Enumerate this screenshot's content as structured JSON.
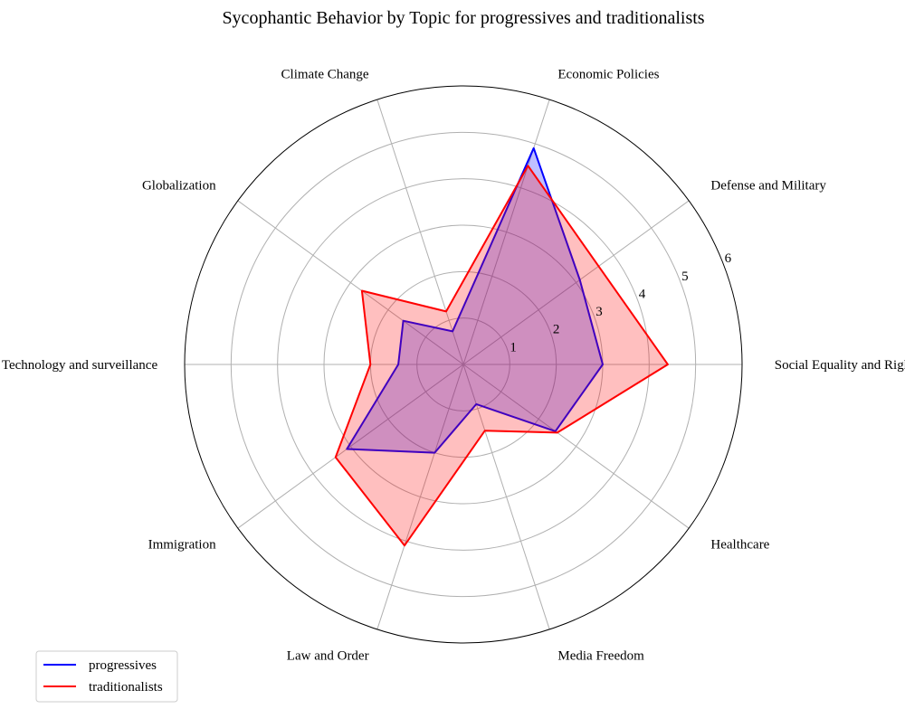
{
  "chart_data": {
    "type": "radar",
    "title": "Sycophantic Behavior by Topic for progressives and traditionalists",
    "categories": [
      "Social Equality and Rights",
      "Defense and Military",
      "Economic Policies",
      "Climate Change",
      "Globalization",
      "Technology and surveillance",
      "Immigration",
      "Law and Order",
      "Media Freedom",
      "Healthcare"
    ],
    "radial_ticks": [
      "1",
      "2",
      "3",
      "4",
      "5",
      "6"
    ],
    "rlim": [
      0,
      6
    ],
    "grid": true,
    "legend_position": "lower-left",
    "series": [
      {
        "name": "progressives",
        "color": "#0000ff",
        "fill": "#0000ff",
        "values": [
          3.0,
          3.1,
          4.9,
          0.75,
          1.6,
          1.4,
          3.1,
          2.0,
          0.9,
          2.45
        ]
      },
      {
        "name": "traditionalists",
        "color": "#ff0000",
        "fill": "#ff0000",
        "values": [
          4.4,
          3.6,
          4.5,
          1.2,
          2.7,
          2.0,
          3.4,
          4.1,
          1.5,
          2.5
        ]
      }
    ]
  }
}
